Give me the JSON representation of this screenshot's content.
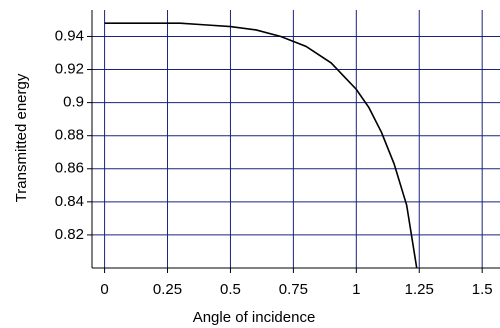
{
  "chart_data": {
    "type": "line",
    "xlabel": "Angle of incidence",
    "ylabel": "Transmitted energy",
    "x": [
      0,
      0.1,
      0.2,
      0.3,
      0.4,
      0.5,
      0.6,
      0.7,
      0.8,
      0.9,
      1.0,
      1.05,
      1.1,
      1.15,
      1.2,
      1.24
    ],
    "series": [
      {
        "color": "#000000",
        "values": [
          0.948,
          0.948,
          0.948,
          0.948,
          0.947,
          0.946,
          0.944,
          0.94,
          0.934,
          0.924,
          0.908,
          0.897,
          0.882,
          0.863,
          0.838,
          0.8
        ]
      }
    ],
    "xlim": [
      -0.05,
      1.5708
    ],
    "ylim": [
      0.8,
      0.956
    ],
    "xticks": [
      0,
      0.25,
      0.5,
      0.75,
      1,
      1.25,
      1.5
    ],
    "yticks": [
      0.82,
      0.84,
      0.86,
      0.88,
      0.9,
      0.92,
      0.94
    ],
    "grid": true,
    "grid_color": "#1a237e"
  }
}
